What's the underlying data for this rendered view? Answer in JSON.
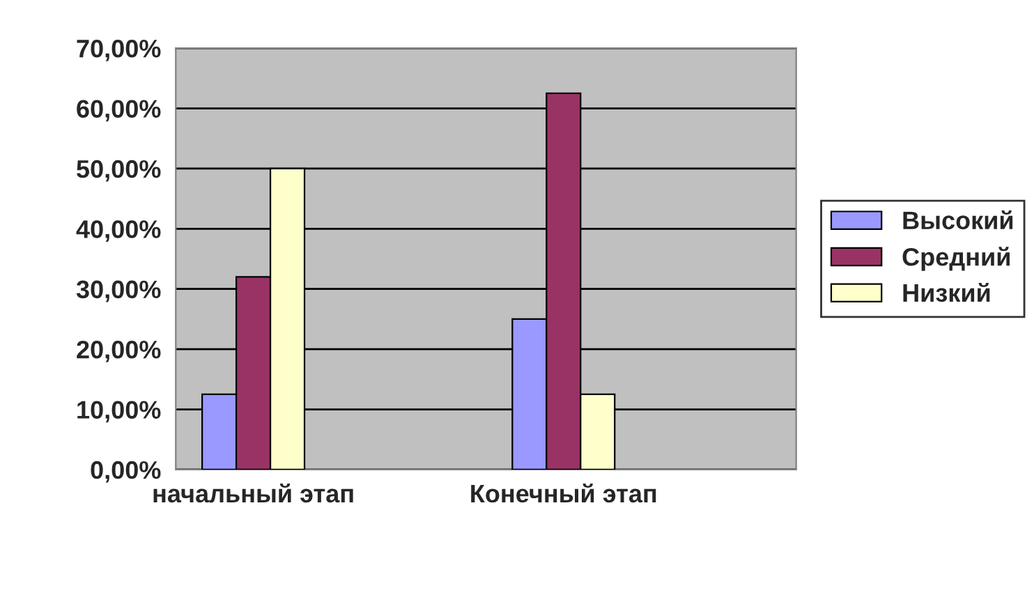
{
  "chart_data": {
    "type": "bar",
    "categories": [
      "начальный этап",
      "Конечный этап"
    ],
    "series": [
      {
        "name": "Высокий",
        "color": "#9999ff",
        "values": [
          12.5,
          25
        ]
      },
      {
        "name": "Средний",
        "color": "#993366",
        "values": [
          32,
          62.5
        ]
      },
      {
        "name": "Низкий",
        "color": "#ffffcc",
        "values": [
          50,
          12.5
        ]
      }
    ],
    "ylim": [
      0,
      70
    ],
    "yticks": [
      {
        "value": 0,
        "label": "0,00%"
      },
      {
        "value": 10,
        "label": "10,00%"
      },
      {
        "value": 20,
        "label": "20,00%"
      },
      {
        "value": 30,
        "label": "30,00%"
      },
      {
        "value": 40,
        "label": "40,00%"
      },
      {
        "value": 50,
        "label": "50,00%"
      },
      {
        "value": 60,
        "label": "60,00%"
      },
      {
        "value": 70,
        "label": "70,00%"
      }
    ],
    "grid": "y",
    "legend": "right"
  }
}
